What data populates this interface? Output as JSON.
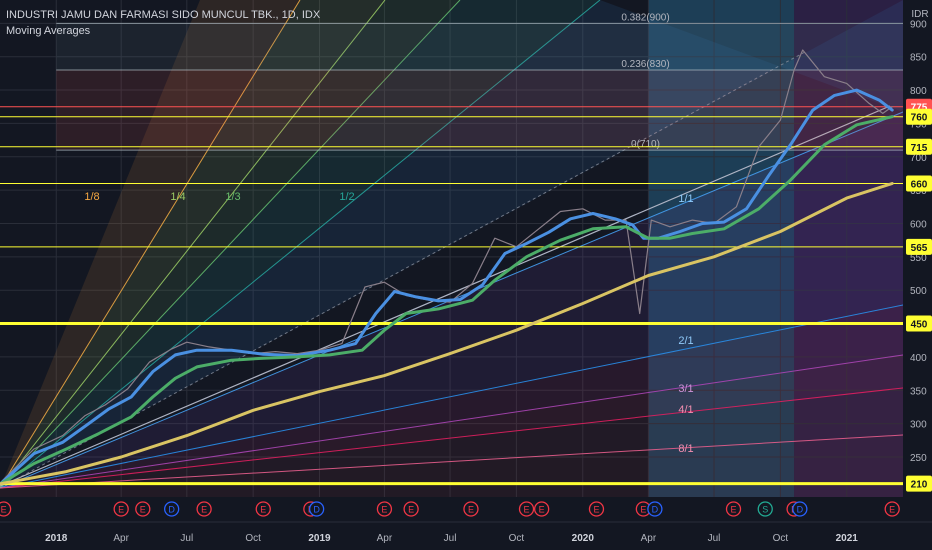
{
  "header": {
    "symbol_line": "INDUSTRI JAMU DAN FARMASI SIDO MUNCUL TBK., 1D, IDX",
    "indicator": "Moving Averages"
  },
  "chart_data": {
    "type": "line",
    "currency": "IDR",
    "y_axis": {
      "range": [
        190,
        935
      ],
      "ticks": [
        900,
        850,
        800,
        750,
        700,
        650,
        600,
        550,
        500,
        450,
        400,
        350,
        300,
        250,
        210
      ]
    },
    "x_axis": {
      "range": [
        "2017-10-15",
        "2021-03-20"
      ],
      "ticks": [
        {
          "label": "2018",
          "date": "2018-01-01",
          "bold": true
        },
        {
          "label": "Apr",
          "date": "2018-04-01"
        },
        {
          "label": "Jul",
          "date": "2018-07-01"
        },
        {
          "label": "Oct",
          "date": "2018-10-01"
        },
        {
          "label": "2019",
          "date": "2019-01-01",
          "bold": true
        },
        {
          "label": "Apr",
          "date": "2019-04-01"
        },
        {
          "label": "Jul",
          "date": "2019-07-01"
        },
        {
          "label": "Oct",
          "date": "2019-10-01"
        },
        {
          "label": "2020",
          "date": "2020-01-01",
          "bold": true
        },
        {
          "label": "Apr",
          "date": "2020-04-01"
        },
        {
          "label": "Jul",
          "date": "2020-07-01"
        },
        {
          "label": "Oct",
          "date": "2020-10-01"
        },
        {
          "label": "2021",
          "date": "2021-01-01",
          "bold": true
        }
      ]
    },
    "horizontal_levels": [
      {
        "price": 775,
        "label": "775",
        "color": "#ff5252",
        "text": "#ffffff"
      },
      {
        "price": 760,
        "label": "760",
        "color": "#ffff33",
        "text": "#131722"
      },
      {
        "price": 715,
        "label": "715",
        "color": "#ffff33",
        "text": "#131722"
      },
      {
        "price": 660,
        "label": "660",
        "color": "#ffff33",
        "text": "#131722"
      },
      {
        "price": 565,
        "label": "565",
        "color": "#ffff33",
        "text": "#131722"
      },
      {
        "price": 450,
        "label": "450",
        "color": "#ffff33",
        "text": "#131722"
      },
      {
        "price": 210,
        "label": "210",
        "color": "#ffff33",
        "text": "#131722"
      }
    ],
    "fib_levels": [
      {
        "price": 900,
        "label": "0.382(900)"
      },
      {
        "price": 830,
        "label": "0.236(830)"
      },
      {
        "price": 710,
        "label": "0(710)"
      }
    ],
    "gann_labels": [
      "1/8",
      "1/4",
      "1/3",
      "1/2",
      "1/1",
      "2/1",
      "3/1",
      "4/1",
      "8/1"
    ],
    "series": [
      {
        "name": "Price",
        "color": "#8a7f8a",
        "points": [
          [
            "2017-10-16",
            212
          ],
          [
            "2017-12-01",
            262
          ],
          [
            "2018-01-10",
            282
          ],
          [
            "2018-02-10",
            312
          ],
          [
            "2018-03-10",
            328
          ],
          [
            "2018-04-10",
            352
          ],
          [
            "2018-05-10",
            392
          ],
          [
            "2018-06-10",
            412
          ],
          [
            "2018-07-01",
            422
          ],
          [
            "2018-08-01",
            415
          ],
          [
            "2018-09-01",
            410
          ],
          [
            "2018-10-01",
            405
          ],
          [
            "2018-11-01",
            408
          ],
          [
            "2018-12-01",
            405
          ],
          [
            "2019-01-01",
            410
          ],
          [
            "2019-02-01",
            420
          ],
          [
            "2019-03-05",
            505
          ],
          [
            "2019-04-01",
            512
          ],
          [
            "2019-05-01",
            492
          ],
          [
            "2019-06-01",
            485
          ],
          [
            "2019-07-01",
            482
          ],
          [
            "2019-08-01",
            510
          ],
          [
            "2019-09-01",
            578
          ],
          [
            "2019-10-01",
            565
          ],
          [
            "2019-11-01",
            592
          ],
          [
            "2019-12-01",
            618
          ],
          [
            "2020-01-01",
            622
          ],
          [
            "2020-02-01",
            605
          ],
          [
            "2020-03-01",
            605
          ],
          [
            "2020-03-20",
            465
          ],
          [
            "2020-04-05",
            605
          ],
          [
            "2020-05-01",
            595
          ],
          [
            "2020-06-01",
            605
          ],
          [
            "2020-07-01",
            600
          ],
          [
            "2020-08-01",
            625
          ],
          [
            "2020-09-01",
            715
          ],
          [
            "2020-10-01",
            755
          ],
          [
            "2020-10-20",
            830
          ],
          [
            "2020-11-01",
            860
          ],
          [
            "2020-12-01",
            820
          ],
          [
            "2021-01-01",
            810
          ],
          [
            "2021-02-01",
            780
          ],
          [
            "2021-02-20",
            765
          ],
          [
            "2021-03-05",
            775
          ]
        ]
      },
      {
        "name": "MA fast",
        "color": "#4a90e2",
        "points": [
          [
            "2017-10-16",
            210
          ],
          [
            "2017-12-01",
            255
          ],
          [
            "2018-01-10",
            272
          ],
          [
            "2018-02-15",
            300
          ],
          [
            "2018-03-15",
            322
          ],
          [
            "2018-04-15",
            340
          ],
          [
            "2018-05-15",
            378
          ],
          [
            "2018-06-15",
            403
          ],
          [
            "2018-07-15",
            410
          ],
          [
            "2018-09-01",
            410
          ],
          [
            "2018-10-15",
            404
          ],
          [
            "2018-12-01",
            402
          ],
          [
            "2019-01-15",
            410
          ],
          [
            "2019-02-20",
            420
          ],
          [
            "2019-03-20",
            465
          ],
          [
            "2019-04-15",
            498
          ],
          [
            "2019-05-15",
            490
          ],
          [
            "2019-06-15",
            484
          ],
          [
            "2019-07-15",
            486
          ],
          [
            "2019-08-15",
            508
          ],
          [
            "2019-09-15",
            555
          ],
          [
            "2019-10-15",
            570
          ],
          [
            "2019-11-15",
            587
          ],
          [
            "2019-12-15",
            607
          ],
          [
            "2020-01-15",
            615
          ],
          [
            "2020-02-15",
            607
          ],
          [
            "2020-03-10",
            598
          ],
          [
            "2020-03-25",
            578
          ],
          [
            "2020-04-15",
            578
          ],
          [
            "2020-05-15",
            588
          ],
          [
            "2020-06-15",
            600
          ],
          [
            "2020-07-15",
            602
          ],
          [
            "2020-08-15",
            622
          ],
          [
            "2020-09-15",
            672
          ],
          [
            "2020-10-15",
            718
          ],
          [
            "2020-11-15",
            770
          ],
          [
            "2020-12-15",
            792
          ],
          [
            "2021-01-15",
            800
          ],
          [
            "2021-02-15",
            785
          ],
          [
            "2021-03-05",
            770
          ]
        ]
      },
      {
        "name": "MA mid",
        "color": "#4cad68",
        "points": [
          [
            "2017-10-16",
            210
          ],
          [
            "2017-12-01",
            240
          ],
          [
            "2018-01-15",
            262
          ],
          [
            "2018-03-01",
            285
          ],
          [
            "2018-04-15",
            310
          ],
          [
            "2018-05-15",
            340
          ],
          [
            "2018-06-15",
            368
          ],
          [
            "2018-07-15",
            385
          ],
          [
            "2018-09-01",
            395
          ],
          [
            "2018-10-15",
            398
          ],
          [
            "2018-12-01",
            400
          ],
          [
            "2019-01-15",
            403
          ],
          [
            "2019-03-01",
            410
          ],
          [
            "2019-04-01",
            440
          ],
          [
            "2019-05-01",
            465
          ],
          [
            "2019-06-15",
            472
          ],
          [
            "2019-08-01",
            485
          ],
          [
            "2019-09-01",
            515
          ],
          [
            "2019-10-15",
            550
          ],
          [
            "2019-12-01",
            575
          ],
          [
            "2020-01-15",
            592
          ],
          [
            "2020-03-01",
            595
          ],
          [
            "2020-04-01",
            578
          ],
          [
            "2020-05-01",
            578
          ],
          [
            "2020-06-01",
            585
          ],
          [
            "2020-07-15",
            592
          ],
          [
            "2020-09-01",
            622
          ],
          [
            "2020-10-15",
            665
          ],
          [
            "2020-12-01",
            718
          ],
          [
            "2021-01-15",
            748
          ],
          [
            "2021-03-05",
            760
          ]
        ]
      },
      {
        "name": "MA slow",
        "color": "#d9c463",
        "points": [
          [
            "2017-10-16",
            210
          ],
          [
            "2018-01-15",
            228
          ],
          [
            "2018-04-01",
            250
          ],
          [
            "2018-07-01",
            282
          ],
          [
            "2018-10-01",
            320
          ],
          [
            "2019-01-01",
            348
          ],
          [
            "2019-04-01",
            372
          ],
          [
            "2019-07-01",
            405
          ],
          [
            "2019-10-01",
            440
          ],
          [
            "2020-01-01",
            480
          ],
          [
            "2020-04-01",
            522
          ],
          [
            "2020-07-01",
            550
          ],
          [
            "2020-10-01",
            588
          ],
          [
            "2021-01-01",
            638
          ],
          [
            "2021-03-05",
            660
          ]
        ]
      }
    ],
    "event_markers": [
      {
        "type": "E",
        "date": "2017-10-20"
      },
      {
        "type": "E",
        "date": "2018-04-01"
      },
      {
        "type": "E",
        "date": "2018-05-01"
      },
      {
        "type": "D",
        "date": "2018-06-10"
      },
      {
        "type": "E",
        "date": "2018-07-25"
      },
      {
        "type": "E",
        "date": "2018-10-15"
      },
      {
        "type": "E",
        "date": "2018-12-20"
      },
      {
        "type": "D",
        "date": "2018-12-28"
      },
      {
        "type": "E",
        "date": "2019-04-01"
      },
      {
        "type": "E",
        "date": "2019-05-08"
      },
      {
        "type": "E",
        "date": "2019-07-30"
      },
      {
        "type": "E",
        "date": "2019-10-15"
      },
      {
        "type": "E",
        "date": "2019-11-05"
      },
      {
        "type": "E",
        "date": "2020-01-20"
      },
      {
        "type": "E",
        "date": "2020-03-25"
      },
      {
        "type": "D",
        "date": "2020-04-10"
      },
      {
        "type": "E",
        "date": "2020-07-28"
      },
      {
        "type": "S",
        "date": "2020-09-10"
      },
      {
        "type": "E",
        "date": "2020-10-20"
      },
      {
        "type": "D",
        "date": "2020-10-28"
      },
      {
        "type": "E",
        "date": "2021-03-05"
      }
    ],
    "colors": {
      "background": "#131722",
      "axis_text": "#b2b5be",
      "event_e": "#f23645",
      "event_d": "#2962ff",
      "event_s": "#22ab94",
      "level": "#ffff33"
    }
  }
}
